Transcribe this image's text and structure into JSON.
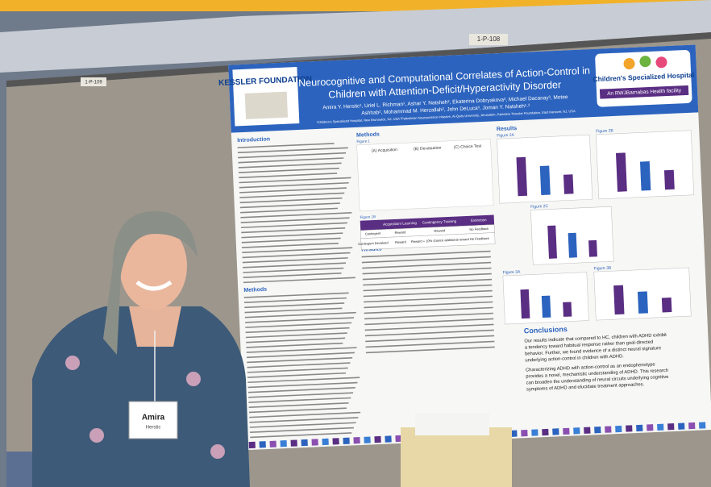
{
  "board_labels": [
    "1-P-108",
    "1-P-109"
  ],
  "poster": {
    "left_logo": "KESSLER FOUNDATION",
    "right_logo": {
      "name": "Children's Specialized Hospital",
      "tagline": "An RWJBarnabas Health facility"
    },
    "title": [
      "Neurocognitive and Computational Correlates of Action-Control in",
      "Children with Attention-Deficit/Hyperactivity Disorder"
    ],
    "authors": [
      "Amira Y. Herstic¹, Uriel L. Richman¹, Ashar Y. Natsheh², Ekaterina Dobryakova³, Michael Dacanay³, Motee",
      "Ashhab², Mohammad M. Herzallah², John DeLuca³, Joman Y. Natsheh¹˒²"
    ],
    "affiliations": "¹Children's Specialized Hospital, New Brunswick, NJ, USA ²Palestinian Neuroscience Initiative, Al-Quds University, Jerusalem, Palestine ³Kessler Foundation, East Hanover, NJ, USA",
    "sections": {
      "introduction": "Introduction",
      "methods_left": "Methods",
      "methods": "Methods",
      "results": "Results",
      "results_mid": "Results",
      "conclusions": "Conclusions"
    },
    "figure_1": {
      "label": "Figure 1",
      "panels": [
        "(A) Acquisition",
        "(B) Devaluation",
        "(C) Choice Test"
      ]
    },
    "table": {
      "label": "Figure 1B",
      "header": [
        "Acquisition/ Learning",
        "Contingency Training",
        "Extinction"
      ],
      "rows": [
        [
          "Contingent",
          "Reward",
          "Reward",
          "No Feedback"
        ],
        [
          "Contingent Devalued",
          "Reward",
          "Reward + 10% chance additional reward",
          "No Feedback"
        ]
      ]
    },
    "figures": [
      "Figure 2A",
      "Figure 2B",
      "Figure 2C",
      "Figure 3A",
      "Figure 3B"
    ],
    "conclusions": [
      "Our results indicate that compared to HC, children with ADHD exhibit",
      "a tendency toward habitual response rather than goal-directed",
      "behavior. Further, we found evidence of a distinct neural signature",
      "underlying action-control in children with ADHD.",
      "Characterizing ADHD with action-control as an endophenotype",
      "provides a novel, mechanistic understanding of ADHD. This research",
      "can broaden the understanding of neural circuits underlying cognitive",
      "symptoms of ADHD and elucidate treatment approaches."
    ]
  },
  "badge": {
    "name": "Amira",
    "surname": "Herstic"
  }
}
